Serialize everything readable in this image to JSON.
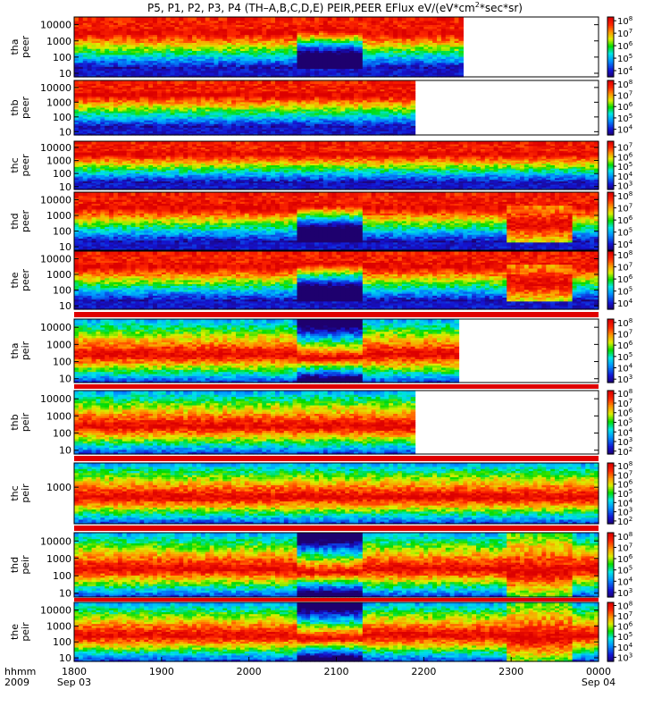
{
  "title": "P5, P1, P2, P3, P4 (TH–A,B,C,D,E) PEIR,PEER EFlux eV/(eV*cm^2*sec*sr)",
  "title_parts": {
    "before": "P5, P1, P2, P3, P4 (TH–A,B,C,D,E) PEIR,PEER EFlux eV/(eV*cm",
    "sup": "2",
    "after": "*sec*sr)"
  },
  "x_axis": {
    "ticks": [
      "1800",
      "1900",
      "2000",
      "2100",
      "2200",
      "2300",
      "0000"
    ],
    "tick_hours": [
      18,
      19,
      20,
      21,
      22,
      23,
      24
    ],
    "row_label_1": "hhmm",
    "row_label_2": "2009",
    "start_date": "Sep 03",
    "end_date": "Sep 04",
    "range_hours": [
      18,
      24
    ]
  },
  "chart_data": [
    {
      "type": "heatmap",
      "name_line1": "tha",
      "name_line2": "peer",
      "y_ticks": [
        "10000",
        "1000",
        "100",
        "10"
      ],
      "y_tick_values": [
        10000,
        1000,
        100,
        10
      ],
      "ylim": [
        6,
        30000
      ],
      "y_scale": "log",
      "data_end_hour": 22.45,
      "colorbar_ticks": [
        4,
        5,
        6,
        7,
        8
      ],
      "colorbar_range": [
        3.5,
        8.3
      ],
      "colorbar_ticks_text": [
        "10^4",
        "10^5",
        "10^6",
        "10^7",
        "10^8"
      ]
    },
    {
      "type": "heatmap",
      "name_line1": "thb",
      "name_line2": "peer",
      "y_ticks": [
        "10000",
        "1000",
        "100",
        "10"
      ],
      "y_tick_values": [
        10000,
        1000,
        100,
        10
      ],
      "ylim": [
        6,
        30000
      ],
      "y_scale": "log",
      "data_end_hour": 21.88,
      "colorbar_ticks": [
        4,
        5,
        6,
        7,
        8
      ],
      "colorbar_range": [
        3.5,
        8.3
      ],
      "colorbar_ticks_text": [
        "10^4",
        "10^5",
        "10^6",
        "10^7",
        "10^8"
      ]
    },
    {
      "type": "heatmap",
      "name_line1": "thc",
      "name_line2": "peer",
      "y_ticks": [
        "10000",
        "1000",
        "100",
        "10"
      ],
      "y_tick_values": [
        10000,
        1000,
        100,
        10
      ],
      "ylim": [
        6,
        30000
      ],
      "y_scale": "log",
      "data_end_hour": 24,
      "colorbar_ticks": [
        3,
        4,
        5,
        6,
        7
      ],
      "colorbar_range": [
        2.6,
        7.6
      ],
      "colorbar_ticks_text": [
        "10^3",
        "10^4",
        "10^5",
        "10^6",
        "10^7"
      ]
    },
    {
      "type": "heatmap",
      "name_line1": "thd",
      "name_line2": "peer",
      "y_ticks": [
        "10000",
        "1000",
        "100",
        "10"
      ],
      "y_tick_values": [
        10000,
        1000,
        100,
        10
      ],
      "ylim": [
        6,
        30000
      ],
      "y_scale": "log",
      "data_end_hour": 24,
      "colorbar_ticks": [
        4,
        5,
        6,
        7,
        8
      ],
      "colorbar_range": [
        3.5,
        8.3
      ],
      "colorbar_ticks_text": [
        "10^4",
        "10^5",
        "10^6",
        "10^7",
        "10^8"
      ]
    },
    {
      "type": "heatmap",
      "name_line1": "the",
      "name_line2": "peer",
      "y_ticks": [
        "10000",
        "1000",
        "100",
        "10"
      ],
      "y_tick_values": [
        10000,
        1000,
        100,
        10
      ],
      "ylim": [
        6,
        30000
      ],
      "y_scale": "log",
      "data_end_hour": 24,
      "colorbar_ticks": [
        4,
        5,
        6,
        7,
        8
      ],
      "colorbar_range": [
        3.5,
        8.3
      ],
      "colorbar_ticks_text": [
        "10^4",
        "10^5",
        "10^6",
        "10^7",
        "10^8"
      ]
    },
    {
      "type": "heatmap",
      "name_line1": "tha",
      "name_line2": "peir",
      "y_ticks": [
        "10000",
        "1000",
        "100",
        "10"
      ],
      "y_tick_values": [
        10000,
        1000,
        100,
        10
      ],
      "ylim": [
        6,
        30000
      ],
      "y_scale": "log",
      "data_end_hour": 22.4,
      "colorbar_ticks": [
        3,
        4,
        5,
        6,
        7,
        8
      ],
      "colorbar_range": [
        2.7,
        8.3
      ],
      "colorbar_ticks_text": [
        "10^3",
        "10^4",
        "10^5",
        "10^6",
        "10^7",
        "10^8"
      ]
    },
    {
      "type": "heatmap",
      "name_line1": "thb",
      "name_line2": "peir",
      "y_ticks": [
        "10000",
        "1000",
        "100",
        "10"
      ],
      "y_tick_values": [
        10000,
        1000,
        100,
        10
      ],
      "ylim": [
        6,
        30000
      ],
      "y_scale": "log",
      "data_end_hour": 21.88,
      "colorbar_ticks": [
        2,
        3,
        4,
        5,
        6,
        7,
        8
      ],
      "colorbar_range": [
        1.7,
        8.3
      ],
      "colorbar_ticks_text": [
        "10^2",
        "10^3",
        "10^4",
        "10^5",
        "10^6",
        "10^7",
        "10^8"
      ]
    },
    {
      "type": "heatmap",
      "name_line1": "thc",
      "name_line2": "peir",
      "y_ticks": [
        "1000"
      ],
      "y_tick_values": [
        1000
      ],
      "ylim": [
        6,
        30000
      ],
      "y_scale": "log",
      "data_end_hour": 24,
      "colorbar_ticks": [
        2,
        3,
        4,
        5,
        6,
        7,
        8
      ],
      "colorbar_range": [
        1.7,
        8.3
      ],
      "colorbar_ticks_text": [
        "10^2",
        "10^3",
        "10^4",
        "10^5",
        "10^6",
        "10^7",
        "10^8"
      ]
    },
    {
      "type": "heatmap",
      "name_line1": "thd",
      "name_line2": "peir",
      "y_ticks": [
        "10000",
        "1000",
        "100",
        "10"
      ],
      "y_tick_values": [
        10000,
        1000,
        100,
        10
      ],
      "ylim": [
        6,
        30000
      ],
      "y_scale": "log",
      "data_end_hour": 24,
      "colorbar_ticks": [
        3,
        4,
        5,
        6,
        7,
        8
      ],
      "colorbar_range": [
        2.6,
        8.3
      ],
      "colorbar_ticks_text": [
        "10^3",
        "10^4",
        "10^5",
        "10^6",
        "10^7",
        "10^8"
      ]
    },
    {
      "type": "heatmap",
      "name_line1": "the",
      "name_line2": "peir",
      "y_ticks": [
        "10000",
        "1000",
        "100",
        "10"
      ],
      "y_tick_values": [
        10000,
        1000,
        100,
        10
      ],
      "ylim": [
        6,
        30000
      ],
      "y_scale": "log",
      "data_end_hour": 24,
      "colorbar_ticks": [
        3,
        4,
        5,
        6,
        7,
        8
      ],
      "colorbar_range": [
        2.6,
        8.3
      ],
      "colorbar_ticks_text": [
        "10^3",
        "10^4",
        "10^5",
        "10^6",
        "10^7",
        "10^8"
      ]
    }
  ],
  "colors": {
    "max": "#e00000",
    "high": "#ff8000",
    "mid": "#ffff00",
    "low": "#00e000",
    "lower": "#00c8ff",
    "min": "#2020c0"
  }
}
